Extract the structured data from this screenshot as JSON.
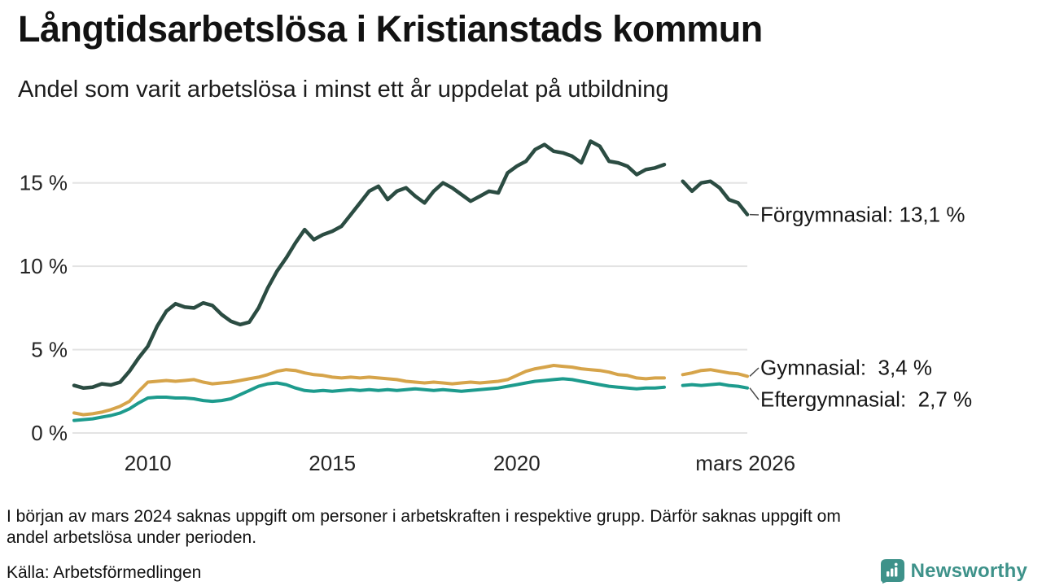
{
  "header": {
    "title": "Långtidsarbetslösa i Kristianstads kommun",
    "subtitle": "Andel som varit arbetslösa i minst ett år uppdelat på utbildning"
  },
  "chart_data": {
    "type": "line",
    "title": "Långtidsarbetslösa i Kristianstads kommun",
    "subtitle": "Andel som varit arbetslösa i minst ett år uppdelat på utbildning",
    "x_unit": "decimal year",
    "xlim": [
      2008,
      2026.25
    ],
    "ylim": [
      0,
      18.5
    ],
    "grid": "horizontal",
    "legend_position": "line-end labels at right",
    "gap_note": "null values in early 2024 = missing data period",
    "x": [
      2008,
      2008.25,
      2008.5,
      2008.75,
      2009,
      2009.25,
      2009.5,
      2009.75,
      2010,
      2010.25,
      2010.5,
      2010.75,
      2011,
      2011.25,
      2011.5,
      2011.75,
      2012,
      2012.25,
      2012.5,
      2012.75,
      2013,
      2013.25,
      2013.5,
      2013.75,
      2014,
      2014.25,
      2014.5,
      2014.75,
      2015,
      2015.25,
      2015.5,
      2015.75,
      2016,
      2016.25,
      2016.5,
      2016.75,
      2017,
      2017.25,
      2017.5,
      2017.75,
      2018,
      2018.25,
      2018.5,
      2018.75,
      2019,
      2019.25,
      2019.5,
      2019.75,
      2020,
      2020.25,
      2020.5,
      2020.75,
      2021,
      2021.25,
      2021.5,
      2021.75,
      2022,
      2022.25,
      2022.5,
      2022.75,
      2023,
      2023.25,
      2023.5,
      2023.75,
      2024,
      2024.25,
      2024.5,
      2024.75,
      2025,
      2025.25,
      2025.5,
      2025.75,
      2026,
      2026.25
    ],
    "series": [
      {
        "name": "Förgymnasial",
        "color": "#2b4c42",
        "stroke_width": 4.5,
        "end_label": "Förgymnasial: 13,1 %",
        "end_value": "13,1 %",
        "values": [
          2.85,
          2.7,
          2.75,
          2.95,
          2.88,
          3.05,
          3.7,
          4.5,
          5.2,
          6.4,
          7.3,
          7.75,
          7.55,
          7.5,
          7.8,
          7.65,
          7.1,
          6.7,
          6.5,
          6.65,
          7.5,
          8.7,
          9.7,
          10.5,
          11.4,
          12.2,
          11.6,
          11.9,
          12.1,
          12.4,
          13.1,
          13.8,
          14.5,
          14.8,
          14.0,
          14.5,
          14.7,
          14.2,
          13.8,
          14.5,
          15.0,
          14.7,
          14.3,
          13.9,
          14.2,
          14.5,
          14.4,
          15.6,
          16.0,
          16.3,
          17.0,
          17.3,
          16.9,
          16.8,
          16.6,
          16.2,
          17.5,
          17.2,
          16.3,
          16.2,
          16.0,
          15.5,
          15.8,
          15.9,
          16.1,
          null,
          15.1,
          14.5,
          15.0,
          15.1,
          14.7,
          14.0,
          13.8,
          13.1
        ]
      },
      {
        "name": "Gymnasial",
        "color": "#d6a44a",
        "stroke_width": 4,
        "end_label": "Gymnasial:  3,4 %",
        "end_value": "3,4 %",
        "values": [
          1.2,
          1.1,
          1.15,
          1.25,
          1.4,
          1.6,
          1.9,
          2.5,
          3.05,
          3.1,
          3.15,
          3.1,
          3.15,
          3.2,
          3.05,
          2.95,
          3.0,
          3.05,
          3.15,
          3.25,
          3.35,
          3.5,
          3.7,
          3.8,
          3.75,
          3.6,
          3.5,
          3.45,
          3.35,
          3.3,
          3.35,
          3.3,
          3.35,
          3.3,
          3.25,
          3.2,
          3.1,
          3.05,
          3.0,
          3.05,
          3.0,
          2.95,
          3.0,
          3.05,
          3.0,
          3.05,
          3.1,
          3.2,
          3.45,
          3.7,
          3.85,
          3.95,
          4.05,
          4.0,
          3.95,
          3.85,
          3.8,
          3.75,
          3.65,
          3.5,
          3.45,
          3.3,
          3.25,
          3.3,
          3.3,
          null,
          3.5,
          3.6,
          3.75,
          3.8,
          3.7,
          3.6,
          3.55,
          3.4
        ]
      },
      {
        "name": "Eftergymnasial",
        "color": "#1d9b8d",
        "stroke_width": 4,
        "end_label": "Eftergymnasial:  2,7 %",
        "end_value": "2,7 %",
        "values": [
          0.75,
          0.8,
          0.85,
          0.95,
          1.05,
          1.2,
          1.45,
          1.8,
          2.1,
          2.15,
          2.15,
          2.1,
          2.1,
          2.05,
          1.95,
          1.9,
          1.95,
          2.05,
          2.3,
          2.55,
          2.8,
          2.95,
          3.0,
          2.9,
          2.7,
          2.55,
          2.5,
          2.55,
          2.5,
          2.55,
          2.6,
          2.55,
          2.6,
          2.55,
          2.6,
          2.55,
          2.6,
          2.65,
          2.6,
          2.55,
          2.6,
          2.55,
          2.5,
          2.55,
          2.6,
          2.65,
          2.7,
          2.8,
          2.9,
          3.0,
          3.1,
          3.15,
          3.2,
          3.25,
          3.2,
          3.1,
          3.0,
          2.9,
          2.8,
          2.75,
          2.7,
          2.65,
          2.7,
          2.7,
          2.75,
          null,
          2.85,
          2.9,
          2.85,
          2.9,
          2.95,
          2.85,
          2.8,
          2.7
        ]
      }
    ],
    "yticks": [
      {
        "value": 0,
        "label": "0 %"
      },
      {
        "value": 5,
        "label": "5 %"
      },
      {
        "value": 10,
        "label": "10 %"
      },
      {
        "value": 15,
        "label": "15 %"
      }
    ],
    "xticks": [
      {
        "value": 2010,
        "label": "2010"
      },
      {
        "value": 2015,
        "label": "2015"
      },
      {
        "value": 2020,
        "label": "2020"
      },
      {
        "value": 2026.2,
        "label": "mars 2026"
      }
    ],
    "colors": {
      "grid": "#e3e3e3",
      "axis_text": "#242424",
      "label_text": "#161616",
      "connector": "#4a4a4a"
    }
  },
  "footnote": {
    "lines": [
      "I början av mars 2024 saknas uppgift om personer i arbetskraften i respektive grupp. Därför saknas uppgift om",
      "andel arbetslösa under perioden."
    ]
  },
  "source": "Källa: Arbetsförmedlingen",
  "branding": {
    "text": "Newsworthy",
    "color": "#3e928a",
    "icon": "newsworthy-bar-chart-bubble-icon"
  }
}
